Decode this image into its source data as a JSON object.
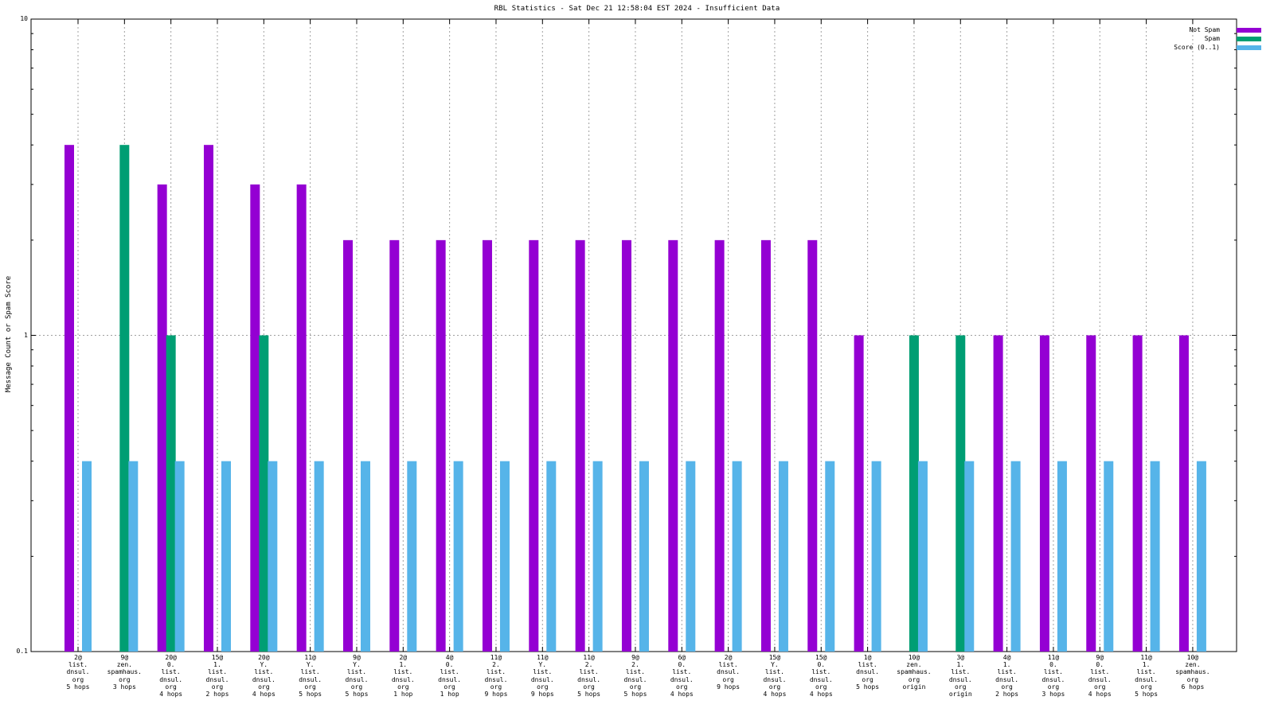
{
  "chart_data": {
    "type": "bar",
    "title": "RBL Statistics - Sat Dec 21 12:58:04 EST 2024 - Insufficient Data",
    "ylabel": "Message Count or Spam Score",
    "xlabel": "",
    "yscale": "log",
    "ylim": [
      0.1,
      10
    ],
    "yticks": [
      "0.1",
      "1",
      "10"
    ],
    "grid": true,
    "legend_placement": "top-right",
    "categories": [
      "2@\nlist.\ndnsul.\norg\n5 hops",
      "9@\nzen.\nspamhaus.\norg\n3 hops",
      "20@\n0.\nlist.\ndnsul.\norg\n4 hops",
      "15@\n1.\nlist.\ndnsul.\norg\n2 hops",
      "20@\nY.\nlist.\ndnsul.\norg\n4 hops",
      "11@\nY.\nlist.\ndnsul.\norg\n5 hops",
      "9@\nY.\nlist.\ndnsul.\norg\n5 hops",
      "2@\n1.\nlist.\ndnsul.\norg\n1 hop",
      "4@\n0.\nlist.\ndnsul.\norg\n1 hop",
      "11@\n2.\nlist.\ndnsul.\norg\n9 hops",
      "11@\nY.\nlist.\ndnsul.\norg\n9 hops",
      "11@\n2.\nlist.\ndnsul.\norg\n5 hops",
      "9@\n2.\nlist.\ndnsul.\norg\n5 hops",
      "6@\n0.\nlist.\ndnsul.\norg\n4 hops",
      "2@\nlist.\ndnsul.\norg\n9 hops",
      "15@\nY.\nlist.\ndnsul.\norg\n4 hops",
      "15@\n0.\nlist.\ndnsul.\norg\n4 hops",
      "1@\nlist.\ndnsul.\norg\n5 hops",
      "10@\nzen.\nspamhaus.\norg\norigin",
      "3@\n1.\nlist.\ndnsul.\norg\norigin",
      "4@\n1.\nlist.\ndnsul.\norg\n2 hops",
      "11@\n0.\nlist.\ndnsul.\norg\n3 hops",
      "9@\n0.\nlist.\ndnsul.\norg\n4 hops",
      "11@\n1.\nlist.\ndnsul.\norg\n5 hops",
      "10@\nzen.\nspamhaus.\norg\n6 hops"
    ],
    "series": [
      {
        "name": "Not Spam",
        "color": "#9400d3",
        "values": [
          4,
          null,
          3,
          4,
          3,
          3,
          2,
          2,
          2,
          2,
          2,
          2,
          2,
          2,
          2,
          2,
          2,
          1,
          null,
          null,
          1,
          1,
          1,
          1,
          1
        ]
      },
      {
        "name": "Spam",
        "color": "#009e73",
        "values": [
          null,
          4,
          1,
          null,
          1,
          null,
          null,
          null,
          null,
          null,
          null,
          null,
          null,
          null,
          null,
          null,
          null,
          null,
          1,
          1,
          null,
          null,
          null,
          null,
          null
        ]
      },
      {
        "name": "Score (0..1)",
        "color": "#56b4e9",
        "values": [
          0.4,
          0.4,
          0.4,
          0.4,
          0.4,
          0.4,
          0.4,
          0.4,
          0.4,
          0.4,
          0.4,
          0.4,
          0.4,
          0.4,
          0.4,
          0.4,
          0.4,
          0.4,
          0.4,
          0.4,
          0.4,
          0.4,
          0.4,
          0.4,
          0.4
        ]
      }
    ]
  }
}
